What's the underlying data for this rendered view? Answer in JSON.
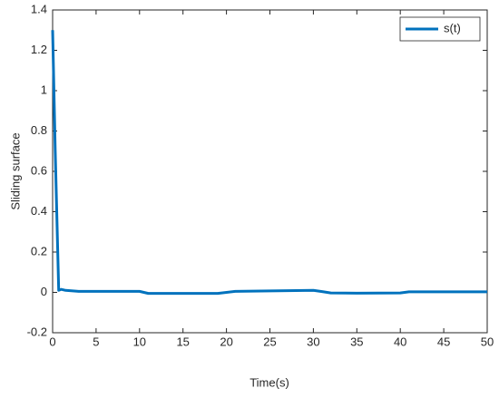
{
  "chart_data": {
    "type": "line",
    "xlabel": "Time(s)",
    "ylabel": "Sliding surface",
    "x": [
      0,
      0.3,
      0.7,
      1,
      1.5,
      3,
      10,
      11,
      19,
      21,
      30,
      31,
      32,
      35,
      40,
      41,
      50
    ],
    "series": [
      {
        "name": "s(t)",
        "color": "#0072bd",
        "values": [
          1.3,
          0.7,
          0.01,
          0.015,
          0.01,
          0.005,
          0.005,
          -0.005,
          -0.005,
          0.005,
          0.01,
          0.004,
          -0.003,
          -0.004,
          -0.003,
          0.003,
          0.003
        ]
      }
    ],
    "xlim": [
      0,
      50
    ],
    "xticks": [
      0,
      5,
      10,
      15,
      20,
      25,
      30,
      35,
      40,
      45,
      50
    ],
    "ylim": [
      -0.2,
      1.4
    ],
    "yticks": [
      -0.2,
      0,
      0.2,
      0.4,
      0.6,
      0.8,
      1,
      1.2,
      1.4
    ],
    "grid": false,
    "legend": "top-right"
  }
}
